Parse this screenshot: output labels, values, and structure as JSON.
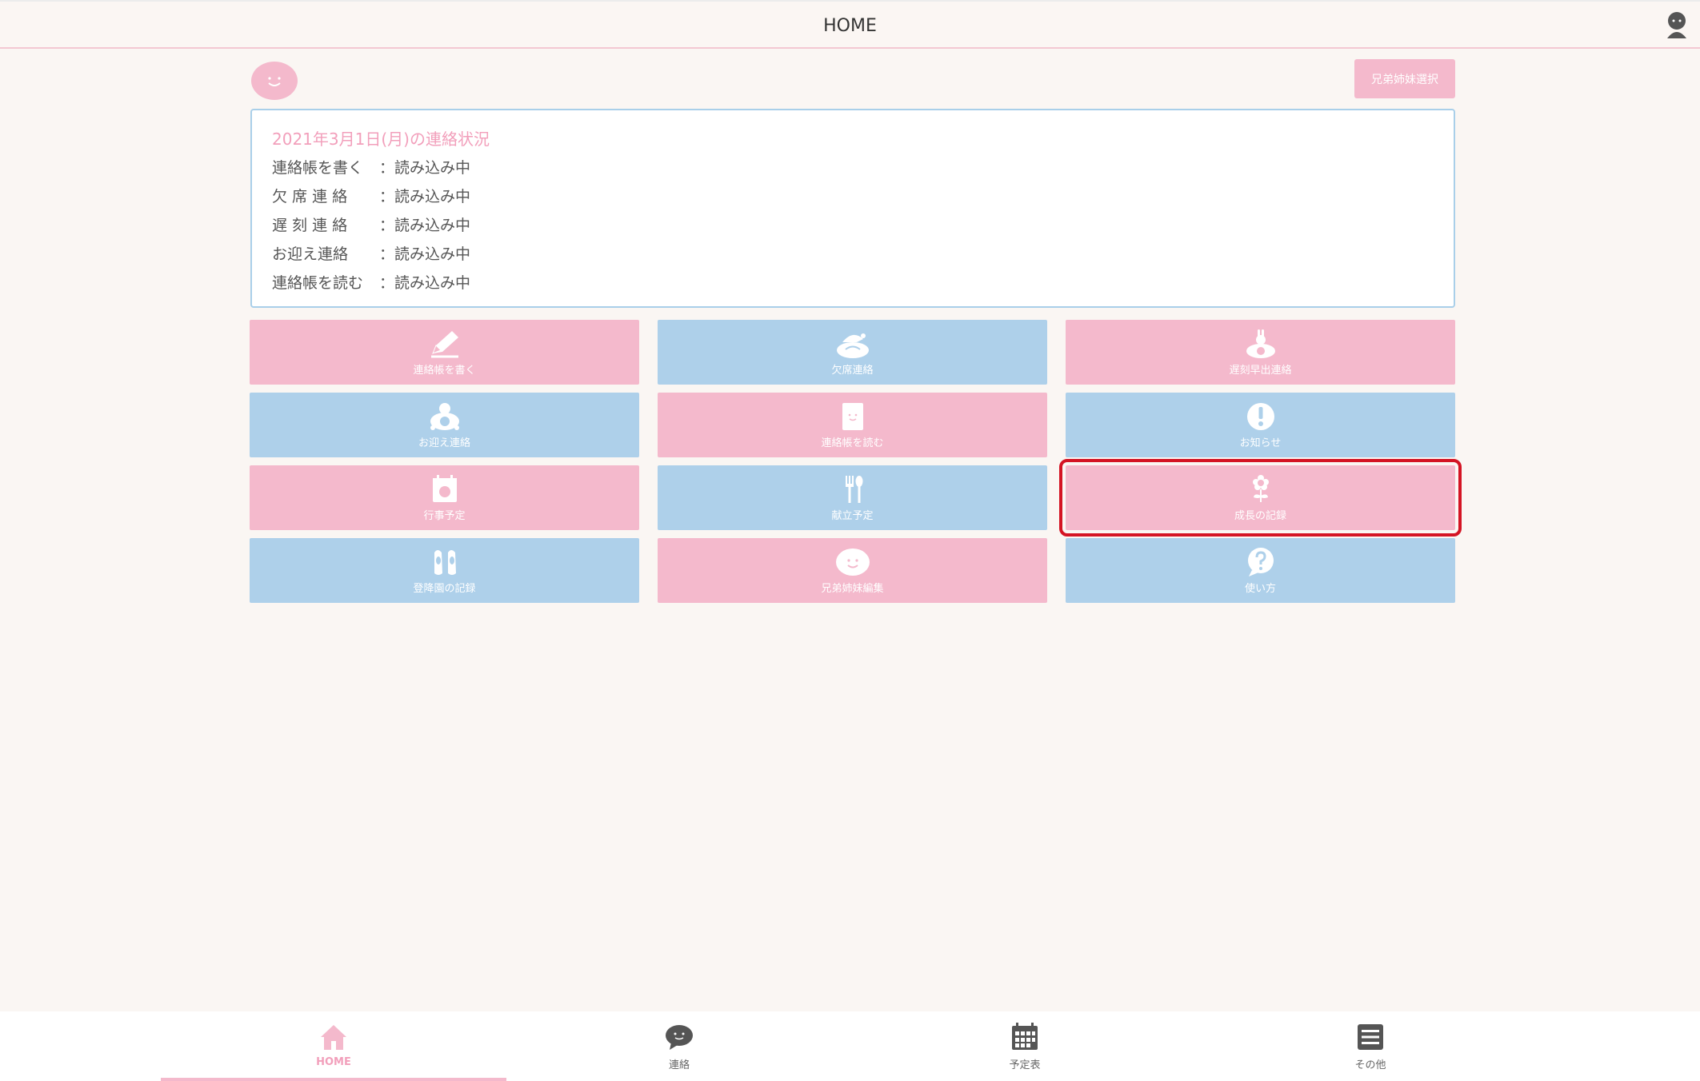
{
  "header": {
    "title": "HOME"
  },
  "sibling_select_label": "兄弟姉妹選択",
  "status": {
    "title": "2021年3月1日(月)の連絡状況",
    "rows": [
      {
        "label": "連絡帳を書く",
        "value": "：読み込み中"
      },
      {
        "label": "欠 席 連 絡 ",
        "value": "：読み込み中"
      },
      {
        "label": "遅 刻 連 絡 ",
        "value": "：読み込み中"
      },
      {
        "label": "お迎え連絡",
        "value": "：読み込み中"
      },
      {
        "label": "連絡帳を読む",
        "value": "：読み込み中"
      }
    ]
  },
  "tiles": [
    {
      "label": "連絡帳を書く",
      "icon": "pencil-icon",
      "color": "pink"
    },
    {
      "label": "欠席連絡",
      "icon": "turtle-sleeping-icon",
      "color": "blue"
    },
    {
      "label": "遅刻早出連絡",
      "icon": "turtle-rabbit-icon",
      "color": "pink"
    },
    {
      "label": "お迎え連絡",
      "icon": "turtle-icon",
      "color": "blue"
    },
    {
      "label": "連絡帳を読む",
      "icon": "notebook-icon",
      "color": "pink"
    },
    {
      "label": "お知らせ",
      "icon": "exclamation-icon",
      "color": "blue"
    },
    {
      "label": "行事予定",
      "icon": "calendar-icon",
      "color": "pink"
    },
    {
      "label": "献立予定",
      "icon": "fork-spoon-icon",
      "color": "blue"
    },
    {
      "label": "成長の記録",
      "icon": "flower-icon",
      "color": "pink"
    },
    {
      "label": "登降園の記録",
      "icon": "shoes-icon",
      "color": "blue"
    },
    {
      "label": "兄弟姉妹編集",
      "icon": "smiley-icon",
      "color": "pink"
    },
    {
      "label": "使い方",
      "icon": "question-icon",
      "color": "blue"
    }
  ],
  "bottom_nav": [
    {
      "label": "HOME",
      "icon": "home-icon"
    },
    {
      "label": "連絡",
      "icon": "chat-icon"
    },
    {
      "label": "予定表",
      "icon": "calendar-grid-icon"
    },
    {
      "label": "その他",
      "icon": "menu-icon"
    }
  ],
  "colors": {
    "pink": "#f4b9cc",
    "blue": "#aed0ea",
    "accent_text": "#f29fbb",
    "selection": "#d41424"
  }
}
